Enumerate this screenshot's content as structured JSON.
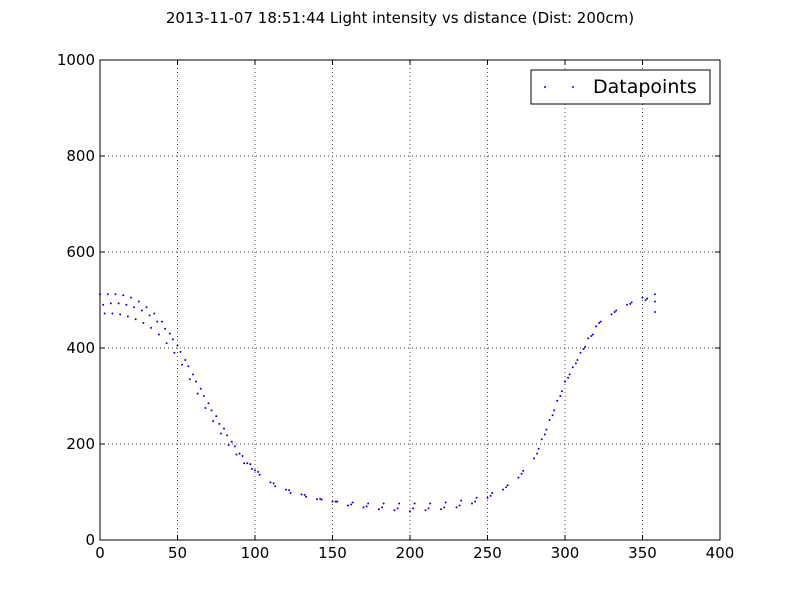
{
  "chart_data": {
    "type": "scatter",
    "title": "2013-11-07 18:51:44 Light intensity vs distance (Dist: 200cm)",
    "xlabel": "",
    "ylabel": "",
    "xlim": [
      0,
      400
    ],
    "ylim": [
      0,
      1000
    ],
    "xticks": [
      0,
      50,
      100,
      150,
      200,
      250,
      300,
      350,
      400
    ],
    "yticks": [
      0,
      200,
      400,
      600,
      800,
      1000
    ],
    "grid": true,
    "legend_position": "top-right",
    "marker_color": "#0000ff",
    "series": [
      {
        "name": "Datapoints",
        "x": [
          0,
          5,
          10,
          15,
          20,
          25,
          30,
          35,
          40,
          45,
          50,
          55,
          60,
          65,
          70,
          75,
          80,
          85,
          90,
          95,
          100,
          110,
          120,
          130,
          140,
          150,
          160,
          170,
          180,
          190,
          200,
          210,
          220,
          230,
          240,
          250,
          260,
          270,
          280,
          285,
          290,
          295,
          300,
          305,
          310,
          315,
          320,
          330,
          340,
          350,
          358,
          2,
          7,
          12,
          17,
          22,
          27,
          32,
          37,
          42,
          47,
          52,
          57,
          62,
          67,
          72,
          77,
          82,
          87,
          92,
          97,
          102,
          112,
          122,
          132,
          142,
          152,
          162,
          172,
          182,
          192,
          202,
          212,
          222,
          232,
          242,
          252,
          262,
          272,
          282,
          287,
          292,
          297,
          302,
          307,
          312,
          317,
          322,
          332,
          342,
          352,
          358,
          3,
          8,
          13,
          18,
          23,
          28,
          33,
          38,
          43,
          48,
          53,
          58,
          63,
          68,
          73,
          78,
          83,
          88,
          93,
          98,
          103,
          113,
          123,
          133,
          143,
          153,
          163,
          173,
          183,
          193,
          203,
          213,
          223,
          233,
          243,
          253,
          263,
          273,
          283,
          288,
          293,
          298,
          303,
          308,
          313,
          318,
          323,
          333,
          343,
          353,
          358
        ],
        "y": [
          512,
          512,
          512,
          510,
          505,
          497,
          485,
          472,
          455,
          430,
          405,
          375,
          345,
          315,
          285,
          258,
          232,
          205,
          180,
          160,
          145,
          120,
          105,
          95,
          85,
          80,
          72,
          68,
          64,
          62,
          60,
          62,
          64,
          68,
          76,
          88,
          105,
          130,
          170,
          210,
          250,
          290,
          330,
          360,
          390,
          420,
          445,
          470,
          490,
          505,
          512,
          490,
          493,
          493,
          490,
          485,
          478,
          468,
          455,
          440,
          418,
          392,
          362,
          330,
          300,
          270,
          242,
          218,
          195,
          175,
          158,
          142,
          118,
          104,
          94,
          86,
          80,
          74,
          70,
          68,
          66,
          66,
          66,
          68,
          72,
          80,
          92,
          110,
          138,
          180,
          220,
          260,
          300,
          338,
          368,
          398,
          425,
          452,
          475,
          492,
          500,
          497,
          472,
          472,
          470,
          466,
          460,
          452,
          442,
          428,
          410,
          390,
          365,
          335,
          305,
          275,
          248,
          222,
          198,
          178,
          160,
          148,
          136,
          112,
          98,
          90,
          84,
          80,
          78,
          76,
          76,
          76,
          76,
          76,
          78,
          82,
          88,
          98,
          114,
          144,
          190,
          230,
          270,
          310,
          345,
          375,
          402,
          428,
          455,
          478,
          495,
          503,
          475
        ]
      }
    ]
  }
}
